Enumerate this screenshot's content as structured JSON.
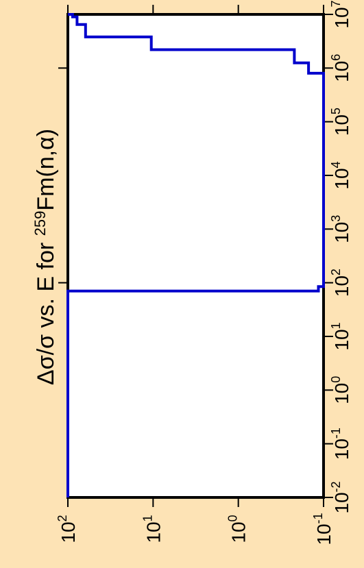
{
  "chart_data": {
    "type": "line",
    "orientation": "rotated-90",
    "title": {
      "prefix": "Δσ/σ vs. E for ",
      "isotope_mass": "259",
      "suffix": "Fm(n,α)"
    },
    "xlabel": "",
    "ylabel": "",
    "x_axis": {
      "scale": "log",
      "range": [
        0.01,
        10000000.0
      ],
      "tick_exponents": [
        -2,
        -1,
        0,
        1,
        2,
        3,
        4,
        5,
        6,
        7
      ],
      "tick_base": "10"
    },
    "y_axis": {
      "scale": "log",
      "range": [
        0.1,
        100
      ],
      "tick_exponents": [
        2,
        1,
        0,
        -1
      ],
      "tick_base": "10"
    },
    "series": [
      {
        "color": "#0000cc",
        "style": "step",
        "points": [
          {
            "x": 0.01,
            "y": 100
          },
          {
            "x": 70,
            "y": 100
          },
          {
            "x": 70,
            "y": 0.115
          },
          {
            "x": 85,
            "y": 0.115
          },
          {
            "x": 85,
            "y": 0.1
          },
          {
            "x": 800000,
            "y": 0.1
          },
          {
            "x": 800000,
            "y": 0.15
          },
          {
            "x": 1250000,
            "y": 0.15
          },
          {
            "x": 1250000,
            "y": 0.22
          },
          {
            "x": 2200000,
            "y": 0.22
          },
          {
            "x": 2200000,
            "y": 10.5
          },
          {
            "x": 3800000,
            "y": 10.5
          },
          {
            "x": 3800000,
            "y": 62
          },
          {
            "x": 6500000,
            "y": 62
          },
          {
            "x": 6500000,
            "y": 78
          },
          {
            "x": 9000000,
            "y": 78
          },
          {
            "x": 9000000,
            "y": 88
          },
          {
            "x": 10000000,
            "y": 88
          },
          {
            "x": 10000000,
            "y": 100
          }
        ]
      }
    ]
  }
}
